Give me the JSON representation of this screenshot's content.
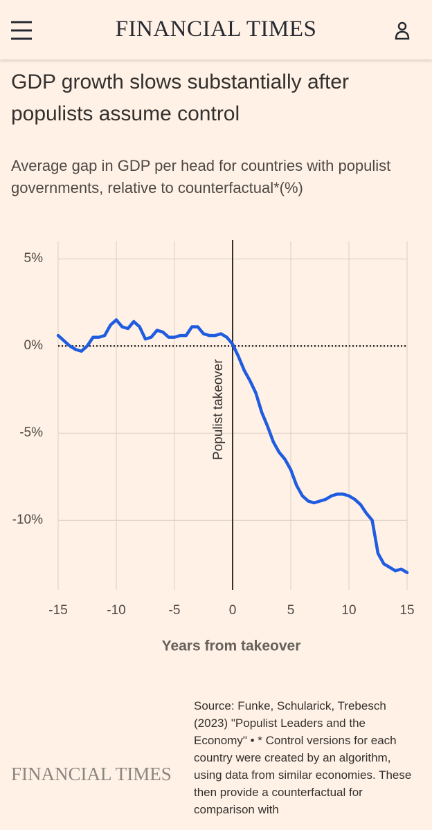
{
  "header": {
    "brand": "FINANCIAL TIMES"
  },
  "chart_data": {
    "type": "line",
    "title": "GDP growth slows substantially after populists assume control",
    "subtitle": "Average gap in GDP per head for countries with populist governments, relative to counterfactual*(%)",
    "x_label": "Years from takeover",
    "annotation": {
      "text": "Populist takeover",
      "x": 0
    },
    "reference_line": {
      "y": 0
    },
    "x": [
      -15,
      -14.5,
      -14,
      -13.5,
      -13,
      -12.5,
      -12,
      -11.5,
      -11,
      -10.5,
      -10,
      -9.5,
      -9,
      -8.5,
      -8,
      -7.5,
      -7,
      -6.5,
      -6,
      -5.5,
      -5,
      -4.5,
      -4,
      -3.5,
      -3,
      -2.5,
      -2,
      -1.5,
      -1,
      -0.5,
      0,
      0.5,
      1,
      1.5,
      2,
      2.5,
      3,
      3.5,
      4,
      4.5,
      5,
      5.5,
      6,
      6.5,
      7,
      7.5,
      8,
      8.5,
      9,
      9.5,
      10,
      10.5,
      11,
      11.5,
      12,
      12.5,
      13,
      13.5,
      14,
      14.5,
      15
    ],
    "values": [
      0.6,
      0.3,
      0.0,
      -0.2,
      -0.3,
      0.0,
      0.5,
      0.5,
      0.6,
      1.2,
      1.5,
      1.1,
      1.0,
      1.4,
      1.1,
      0.4,
      0.5,
      0.9,
      0.8,
      0.5,
      0.5,
      0.6,
      0.6,
      1.1,
      1.1,
      0.7,
      0.6,
      0.6,
      0.7,
      0.5,
      0.1,
      -0.6,
      -1.4,
      -2.0,
      -2.7,
      -3.8,
      -4.6,
      -5.5,
      -6.1,
      -6.5,
      -7.1,
      -8.0,
      -8.6,
      -8.9,
      -9.0,
      -8.9,
      -8.8,
      -8.6,
      -8.5,
      -8.5,
      -8.6,
      -8.8,
      -9.1,
      -9.6,
      -10.0,
      -11.9,
      -12.5,
      -12.7,
      -12.9,
      -12.8,
      -13.0
    ],
    "color": "#1f5ce0",
    "xlim": [
      -15,
      15
    ],
    "ylim": [
      -14,
      6
    ],
    "xticks": [
      -15,
      -10,
      -5,
      0,
      5,
      10,
      15
    ],
    "yticks": [
      {
        "value": 5,
        "label": "5%"
      },
      {
        "value": 0,
        "label": "0%"
      },
      {
        "value": -5,
        "label": "-5%"
      },
      {
        "value": -10,
        "label": "-10%"
      }
    ],
    "grid": true
  },
  "footer": {
    "source": "Source: Funke, Schularick, Trebesch (2023) \"Populist Leaders and the Economy\" • * Control versions for each country were created by an algorithm, using data from similar economies. These then provide a counterfactual for comparison with",
    "brand": "FINANCIAL TIMES"
  }
}
